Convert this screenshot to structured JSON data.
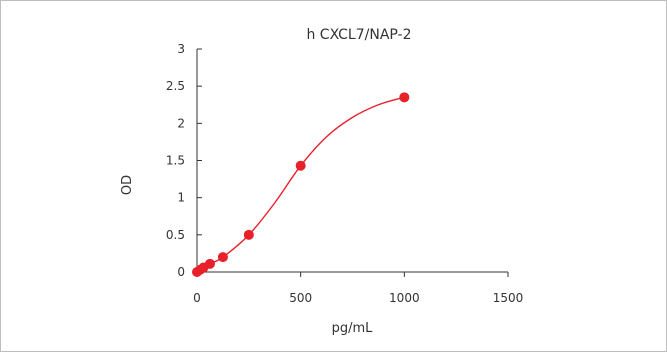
{
  "chart_data": {
    "type": "scatter",
    "title": "h  CXCL7/NAP-2",
    "xlabel": "pg/mL",
    "ylabel": "OD",
    "xlim": [
      0,
      1500
    ],
    "ylim": [
      0,
      3
    ],
    "xticks": [
      "0",
      "500",
      "1000",
      "1500"
    ],
    "yticks": [
      "0",
      "0.5",
      "1",
      "1.5",
      "2",
      "2.5",
      "3"
    ],
    "grid": false,
    "legend": "none",
    "series": [
      {
        "x": [
          0,
          15.6,
          31.25,
          62.5,
          125,
          250,
          500,
          1000
        ],
        "y": [
          0.0,
          0.03,
          0.06,
          0.11,
          0.2,
          0.5,
          1.43,
          2.35
        ]
      }
    ],
    "trend_curve": {
      "x": [
        0,
        15.6,
        31.25,
        62.5,
        125,
        250,
        375,
        500,
        625,
        750,
        875,
        1000
      ],
      "y": [
        0.0,
        0.03,
        0.06,
        0.11,
        0.2,
        0.5,
        0.93,
        1.43,
        1.82,
        2.08,
        2.25,
        2.35
      ]
    },
    "colors": {
      "series": "#e8202a",
      "axis": "#333333"
    }
  }
}
